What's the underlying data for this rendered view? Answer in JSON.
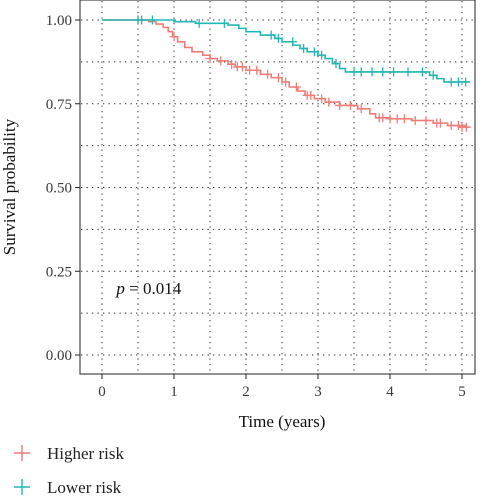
{
  "chart_data": {
    "type": "line",
    "subtype": "kaplan-meier",
    "title": "",
    "xlabel": "Time (years)",
    "ylabel": "Survival probability",
    "xlim": [
      0,
      5.1
    ],
    "ylim": [
      0,
      1.02
    ],
    "xticks": [
      0,
      1,
      2,
      3,
      4,
      5
    ],
    "xtick_labels": [
      "0",
      "1",
      "2",
      "3",
      "4",
      "5"
    ],
    "yticks": [
      0,
      0.25,
      0.5,
      0.75,
      1.0
    ],
    "ytick_labels": [
      "0.00",
      "0.25",
      "0.50",
      "0.75",
      "1.00"
    ],
    "grid": "dotted",
    "annotation": {
      "p_symbol": "p",
      "p_text": " = 0.014",
      "x": 0.2,
      "y": 0.2
    },
    "legend_position": "bottom-left",
    "series": [
      {
        "name": "Higher risk",
        "color": "#F07C77",
        "steps": [
          [
            0,
            1.0
          ],
          [
            0.65,
            0.995
          ],
          [
            0.75,
            0.988
          ],
          [
            0.85,
            0.978
          ],
          [
            0.92,
            0.965
          ],
          [
            0.98,
            0.95
          ],
          [
            1.05,
            0.935
          ],
          [
            1.15,
            0.918
          ],
          [
            1.25,
            0.905
          ],
          [
            1.4,
            0.895
          ],
          [
            1.5,
            0.885
          ],
          [
            1.6,
            0.878
          ],
          [
            1.75,
            0.868
          ],
          [
            1.85,
            0.86
          ],
          [
            2.0,
            0.85
          ],
          [
            2.2,
            0.838
          ],
          [
            2.35,
            0.828
          ],
          [
            2.5,
            0.815
          ],
          [
            2.6,
            0.8
          ],
          [
            2.72,
            0.788
          ],
          [
            2.82,
            0.775
          ],
          [
            2.95,
            0.765
          ],
          [
            3.1,
            0.755
          ],
          [
            3.3,
            0.745
          ],
          [
            3.55,
            0.735
          ],
          [
            3.72,
            0.72
          ],
          [
            3.8,
            0.708
          ],
          [
            4.0,
            0.705
          ],
          [
            4.3,
            0.7
          ],
          [
            4.6,
            0.692
          ],
          [
            4.8,
            0.685
          ],
          [
            5.05,
            0.68
          ]
        ],
        "censor": [
          [
            0.5,
            1.0
          ],
          [
            0.55,
            1.0
          ],
          [
            1.0,
            0.95
          ],
          [
            1.5,
            0.885
          ],
          [
            1.65,
            0.878
          ],
          [
            1.8,
            0.868
          ],
          [
            1.88,
            0.86
          ],
          [
            1.95,
            0.86
          ],
          [
            2.05,
            0.85
          ],
          [
            2.15,
            0.85
          ],
          [
            2.3,
            0.838
          ],
          [
            2.45,
            0.828
          ],
          [
            2.55,
            0.815
          ],
          [
            2.7,
            0.8
          ],
          [
            2.85,
            0.775
          ],
          [
            2.9,
            0.775
          ],
          [
            3.05,
            0.765
          ],
          [
            3.15,
            0.755
          ],
          [
            3.3,
            0.745
          ],
          [
            3.45,
            0.745
          ],
          [
            3.6,
            0.735
          ],
          [
            3.85,
            0.708
          ],
          [
            3.9,
            0.708
          ],
          [
            4.0,
            0.705
          ],
          [
            4.1,
            0.705
          ],
          [
            4.2,
            0.705
          ],
          [
            4.35,
            0.7
          ],
          [
            4.5,
            0.7
          ],
          [
            4.65,
            0.692
          ],
          [
            4.7,
            0.692
          ],
          [
            4.85,
            0.685
          ],
          [
            4.95,
            0.685
          ],
          [
            5.0,
            0.68
          ],
          [
            5.06,
            0.68
          ]
        ]
      },
      {
        "name": "Lower risk",
        "color": "#21B8B5",
        "steps": [
          [
            0,
            1.0
          ],
          [
            1.0,
            0.995
          ],
          [
            1.3,
            0.99
          ],
          [
            1.75,
            0.985
          ],
          [
            1.9,
            0.975
          ],
          [
            2.0,
            0.965
          ],
          [
            2.2,
            0.955
          ],
          [
            2.4,
            0.945
          ],
          [
            2.5,
            0.935
          ],
          [
            2.65,
            0.925
          ],
          [
            2.75,
            0.915
          ],
          [
            2.85,
            0.905
          ],
          [
            3.0,
            0.895
          ],
          [
            3.1,
            0.885
          ],
          [
            3.2,
            0.87
          ],
          [
            3.3,
            0.855
          ],
          [
            3.38,
            0.845
          ],
          [
            4.55,
            0.835
          ],
          [
            4.65,
            0.825
          ],
          [
            4.75,
            0.815
          ]
        ],
        "censor": [
          [
            0.5,
            1.0
          ],
          [
            0.55,
            1.0
          ],
          [
            0.7,
            1.0
          ],
          [
            1.35,
            0.99
          ],
          [
            1.7,
            0.99
          ],
          [
            2.35,
            0.955
          ],
          [
            2.45,
            0.945
          ],
          [
            2.65,
            0.935
          ],
          [
            2.8,
            0.915
          ],
          [
            2.95,
            0.905
          ],
          [
            3.05,
            0.895
          ],
          [
            3.25,
            0.87
          ],
          [
            3.5,
            0.845
          ],
          [
            3.6,
            0.845
          ],
          [
            3.75,
            0.845
          ],
          [
            3.9,
            0.845
          ],
          [
            4.05,
            0.845
          ],
          [
            4.25,
            0.845
          ],
          [
            4.45,
            0.845
          ],
          [
            4.6,
            0.835
          ],
          [
            4.85,
            0.815
          ],
          [
            4.95,
            0.815
          ],
          [
            5.05,
            0.815
          ]
        ]
      }
    ]
  }
}
